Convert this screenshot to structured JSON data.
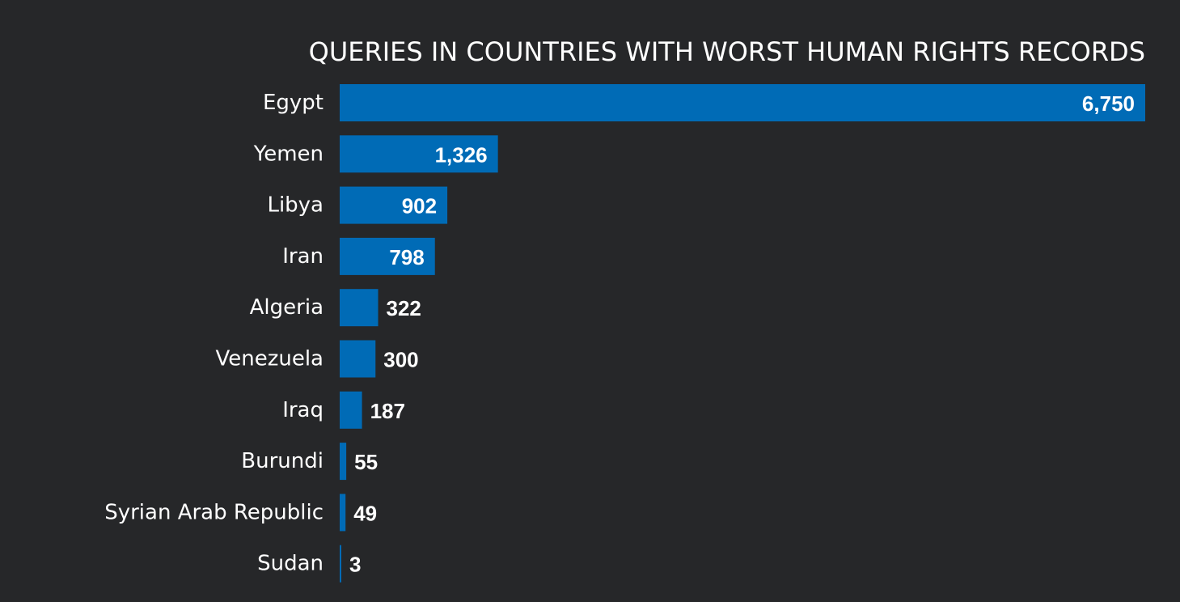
{
  "chart_data": {
    "type": "bar",
    "orientation": "horizontal",
    "title": "QUERIES IN COUNTRIES WITH WORST HUMAN RIGHTS RECORDS",
    "categories": [
      "Egypt",
      "Yemen",
      "Libya",
      "Iran",
      "Algeria",
      "Venezuela",
      "Iraq",
      "Burundi",
      "Syrian Arab Republic",
      "Sudan"
    ],
    "values": [
      6750,
      1326,
      902,
      798,
      322,
      300,
      187,
      55,
      49,
      3
    ],
    "value_labels": [
      "6,750",
      "1,326",
      "902",
      "798",
      "322",
      "300",
      "187",
      "55",
      "49",
      "3"
    ],
    "xlabel": "",
    "ylabel": "",
    "xlim": [
      0,
      6750
    ],
    "grid": false,
    "legend": "none",
    "colors": {
      "background": "#262729",
      "bar": "#006bb6",
      "text": "#ffffff"
    }
  }
}
